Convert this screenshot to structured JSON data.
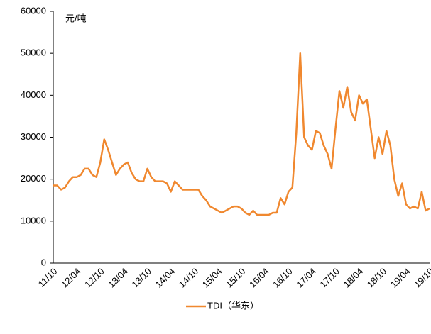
{
  "chart_data": {
    "type": "line",
    "y_label": "元/吨",
    "categories": [
      "11/10",
      null,
      null,
      null,
      null,
      null,
      "12/04",
      null,
      null,
      null,
      null,
      null,
      "12/10",
      null,
      null,
      null,
      null,
      null,
      "13/04",
      null,
      null,
      null,
      null,
      null,
      "13/10",
      null,
      null,
      null,
      null,
      null,
      "14/04",
      null,
      null,
      null,
      null,
      null,
      "14/10",
      null,
      null,
      null,
      null,
      null,
      "15/04",
      null,
      null,
      null,
      null,
      null,
      "15/10",
      null,
      null,
      null,
      null,
      null,
      "16/04",
      null,
      null,
      null,
      null,
      null,
      "16/10",
      null,
      null,
      null,
      null,
      null,
      "17/04",
      null,
      null,
      null,
      null,
      null,
      "17/10",
      null,
      null,
      null,
      null,
      null,
      "18/04",
      null,
      null,
      null,
      null,
      null,
      "18/10",
      null,
      null,
      null,
      null,
      null,
      "19/04",
      null,
      null,
      null,
      null,
      null,
      "19/10"
    ],
    "series": [
      {
        "name": "TDI（华东）",
        "color": "#f0882f",
        "values": [
          18500,
          18500,
          17500,
          18000,
          19500,
          20500,
          20500,
          21000,
          22500,
          22500,
          21000,
          20500,
          24000,
          29500,
          27000,
          24000,
          21000,
          22500,
          23500,
          24000,
          21500,
          20000,
          19500,
          19500,
          22500,
          20500,
          19500,
          19500,
          19500,
          19000,
          17000,
          19500,
          18500,
          17500,
          17500,
          17500,
          17500,
          17500,
          16000,
          15000,
          13500,
          13000,
          12500,
          12000,
          12500,
          13000,
          13500,
          13500,
          13000,
          12000,
          11500,
          12500,
          11500,
          11500,
          11500,
          11500,
          12000,
          12000,
          15500,
          14000,
          17000,
          18000,
          31000,
          50000,
          30000,
          28000,
          27000,
          31500,
          31000,
          28000,
          26000,
          22500,
          32000,
          41000,
          37000,
          42000,
          36000,
          34000,
          40000,
          38000,
          39000,
          32000,
          25000,
          30000,
          26000,
          31500,
          28000,
          20000,
          16000,
          19000,
          14000,
          13000,
          13500,
          13000,
          17000,
          12500,
          13000
        ]
      }
    ],
    "ylim": [
      0,
      60000
    ],
    "yticks": [
      0,
      10000,
      20000,
      30000,
      40000,
      50000,
      60000
    ]
  }
}
